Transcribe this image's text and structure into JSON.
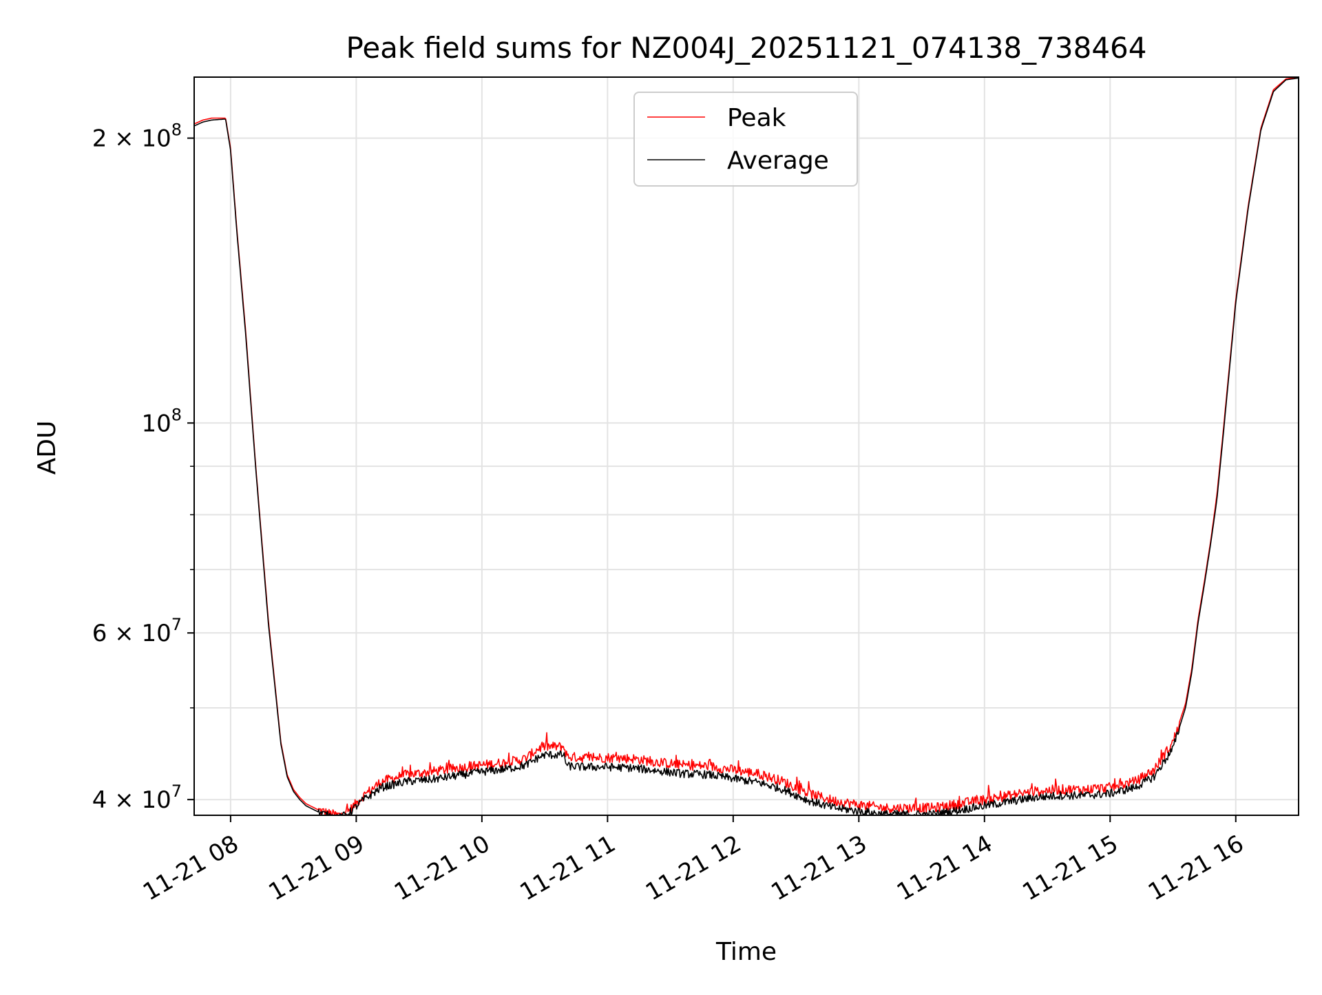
{
  "chart_data": {
    "type": "line",
    "title": "Peak field sums for NZ004J_20251121_074138_738464",
    "xlabel": "Time",
    "ylabel": "ADU",
    "yscale": "log",
    "xlim_hours": [
      7.71,
      16.5
    ],
    "ylim": [
      38500000,
      232000000
    ],
    "x_ticks": [
      {
        "hour": 8,
        "label": "11-21 08"
      },
      {
        "hour": 9,
        "label": "11-21 09"
      },
      {
        "hour": 10,
        "label": "11-21 10"
      },
      {
        "hour": 11,
        "label": "11-21 11"
      },
      {
        "hour": 12,
        "label": "11-21 12"
      },
      {
        "hour": 13,
        "label": "11-21 13"
      },
      {
        "hour": 14,
        "label": "11-21 14"
      },
      {
        "hour": 15,
        "label": "11-21 15"
      },
      {
        "hour": 16,
        "label": "11-21 16"
      }
    ],
    "y_major_ticks": [
      {
        "value": 40000000,
        "label": "4 × 10",
        "exp": "7"
      },
      {
        "value": 60000000,
        "label": "6 × 10",
        "exp": "7"
      },
      {
        "value": 100000000,
        "label": "10",
        "exp": "8"
      },
      {
        "value": 200000000,
        "label": "2 × 10",
        "exp": "8"
      }
    ],
    "y_minor_ticks": [
      50000000,
      70000000,
      80000000,
      90000000
    ],
    "grid": true,
    "legend_position": "top-center",
    "series": [
      {
        "name": "Peak",
        "color": "#ff0000",
        "x_hours": [
          7.71,
          7.78,
          7.85,
          7.96,
          8.0,
          8.05,
          8.12,
          8.2,
          8.3,
          8.4,
          8.45,
          8.5,
          8.55,
          8.6,
          8.7,
          8.8,
          8.88,
          8.95,
          9.05,
          9.2,
          9.4,
          9.6,
          9.8,
          10.0,
          10.2,
          10.35,
          10.45,
          10.5,
          10.65,
          10.68,
          10.8,
          11.0,
          11.2,
          11.4,
          11.6,
          11.8,
          12.0,
          12.2,
          12.4,
          12.6,
          12.8,
          13.0,
          13.2,
          13.4,
          13.6,
          13.8,
          14.0,
          14.2,
          14.4,
          14.6,
          14.8,
          15.0,
          15.2,
          15.35,
          15.5,
          15.6,
          15.65,
          15.7,
          15.75,
          15.8,
          15.85,
          15.9,
          15.95,
          16.0,
          16.1,
          16.2,
          16.3,
          16.4,
          16.5
        ],
        "values": [
          207000000,
          209000000,
          210000000,
          210000000,
          195000000,
          160000000,
          125000000,
          90000000,
          62000000,
          46000000,
          42500000,
          41000000,
          40200000,
          39600000,
          39000000,
          38600000,
          38500000,
          39000000,
          40300000,
          41800000,
          42500000,
          42800000,
          43200000,
          43500000,
          43800000,
          44200000,
          45300000,
          45500000,
          45500000,
          44400000,
          44300000,
          44300000,
          44200000,
          43800000,
          43500000,
          43400000,
          43000000,
          42600000,
          41800000,
          40600000,
          39900000,
          39500000,
          39200000,
          39200000,
          39200000,
          39600000,
          40000000,
          40400000,
          40800000,
          41000000,
          41000000,
          41200000,
          41800000,
          43000000,
          46000000,
          50500000,
          55000000,
          62000000,
          68000000,
          75000000,
          84000000,
          98000000,
          115000000,
          135000000,
          170000000,
          205000000,
          225000000,
          231000000,
          232000000
        ]
      },
      {
        "name": "Average",
        "color": "#000000",
        "x_hours": [
          7.71,
          7.78,
          7.85,
          7.96,
          8.0,
          8.05,
          8.12,
          8.2,
          8.3,
          8.4,
          8.45,
          8.5,
          8.55,
          8.6,
          8.7,
          8.8,
          8.88,
          8.95,
          9.05,
          9.2,
          9.4,
          9.6,
          9.8,
          10.0,
          10.2,
          10.35,
          10.45,
          10.5,
          10.65,
          10.68,
          10.8,
          11.0,
          11.2,
          11.4,
          11.6,
          11.8,
          12.0,
          12.2,
          12.4,
          12.6,
          12.8,
          13.0,
          13.2,
          13.4,
          13.6,
          13.8,
          14.0,
          14.2,
          14.4,
          14.6,
          14.8,
          15.0,
          15.2,
          15.35,
          15.5,
          15.6,
          15.65,
          15.7,
          15.75,
          15.8,
          15.85,
          15.9,
          15.95,
          16.0,
          16.1,
          16.2,
          16.3,
          16.4,
          16.5
        ],
        "values": [
          206000000,
          208000000,
          209000000,
          209500000,
          194000000,
          159000000,
          124000000,
          89500000,
          61500000,
          45800000,
          42300000,
          40800000,
          40000000,
          39400000,
          38800000,
          38400000,
          38300000,
          38800000,
          39900000,
          41200000,
          41800000,
          42000000,
          42400000,
          42800000,
          43100000,
          43500000,
          44300000,
          44600000,
          44600000,
          43400000,
          43300000,
          43300000,
          43200000,
          42900000,
          42600000,
          42500000,
          42100000,
          41700000,
          41000000,
          39900000,
          39200000,
          38900000,
          38600000,
          38600000,
          38600000,
          39000000,
          39400000,
          39800000,
          40200000,
          40400000,
          40400000,
          40600000,
          41200000,
          42300000,
          45300000,
          50000000,
          54500000,
          61500000,
          67500000,
          74500000,
          83000000,
          97000000,
          114000000,
          134000000,
          169000000,
          204000000,
          224000000,
          230500000,
          231500000
        ]
      }
    ]
  }
}
